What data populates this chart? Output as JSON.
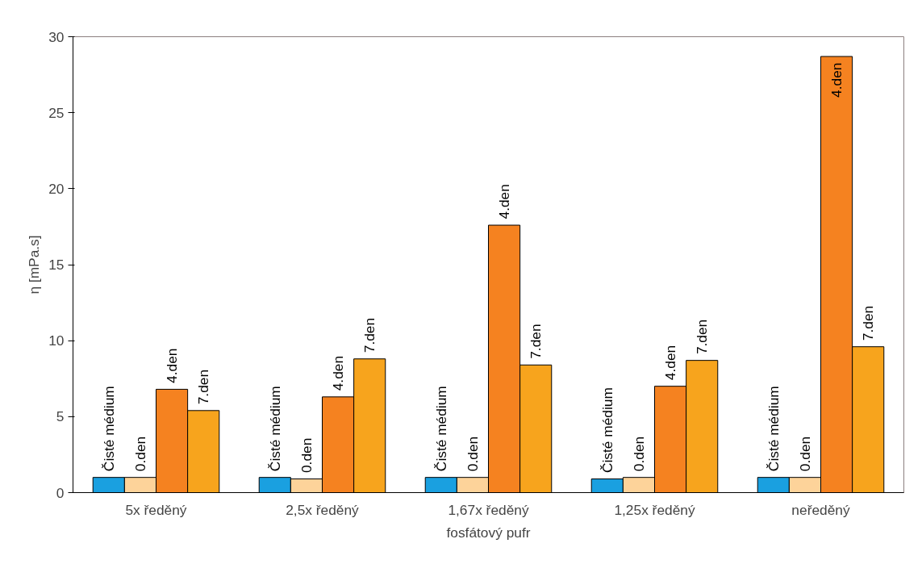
{
  "chart_data": {
    "type": "bar",
    "xlabel": "fosfátový pufr",
    "ylabel": "η [mPa.s]",
    "categories": [
      "5x ředěný",
      "2,5x ředěný",
      "1,67x ředěný",
      "1,25x ředěný",
      "neředěný"
    ],
    "series": [
      {
        "name": "Čisté médium",
        "color": "#1aa0e0",
        "values": [
          1.0,
          1.0,
          1.0,
          0.9,
          1.0
        ]
      },
      {
        "name": "0.den",
        "color": "#fdd39a",
        "values": [
          1.0,
          0.9,
          1.0,
          1.0,
          1.0
        ]
      },
      {
        "name": "4.den",
        "color": "#f58220",
        "values": [
          6.8,
          6.3,
          17.6,
          7.0,
          28.7
        ]
      },
      {
        "name": "7.den",
        "color": "#f7a41d",
        "values": [
          5.4,
          8.8,
          8.4,
          8.7,
          9.6
        ]
      }
    ],
    "ylim": [
      0,
      30
    ],
    "yticks": [
      0,
      5,
      10,
      15,
      20,
      25,
      30
    ],
    "grid": false,
    "legend": false
  }
}
